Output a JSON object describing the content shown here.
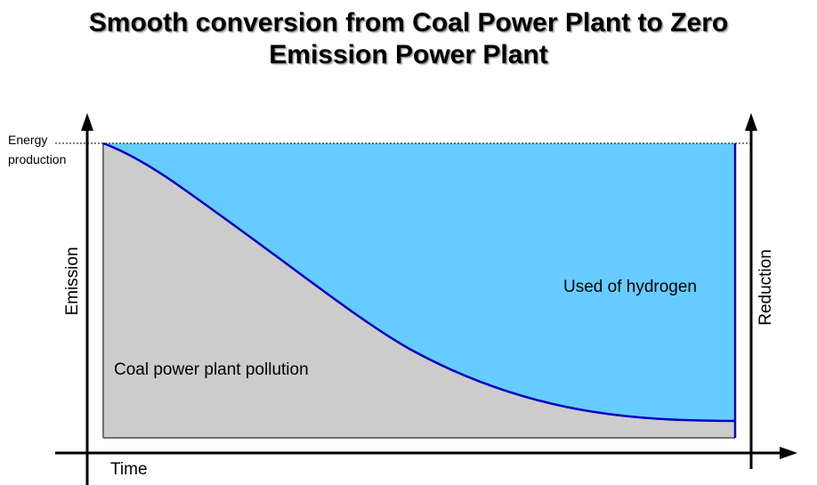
{
  "title": {
    "line1": "Smooth conversion from Coal Power Plant to Zero",
    "line2": "Emission Power Plant"
  },
  "labels": {
    "energy_production_line1": "Energy",
    "energy_production_line2": "production",
    "emission_axis": "Emission",
    "reduction_axis": "Reduction",
    "time_axis": "Time",
    "coal_region": "Coal power plant pollution",
    "hydrogen_region": "Used of hydrogen"
  },
  "colors": {
    "coal_fill": "#cccccc",
    "hydrogen_fill": "#66ccff",
    "curve": "#0000c0",
    "axis": "#000000"
  }
}
